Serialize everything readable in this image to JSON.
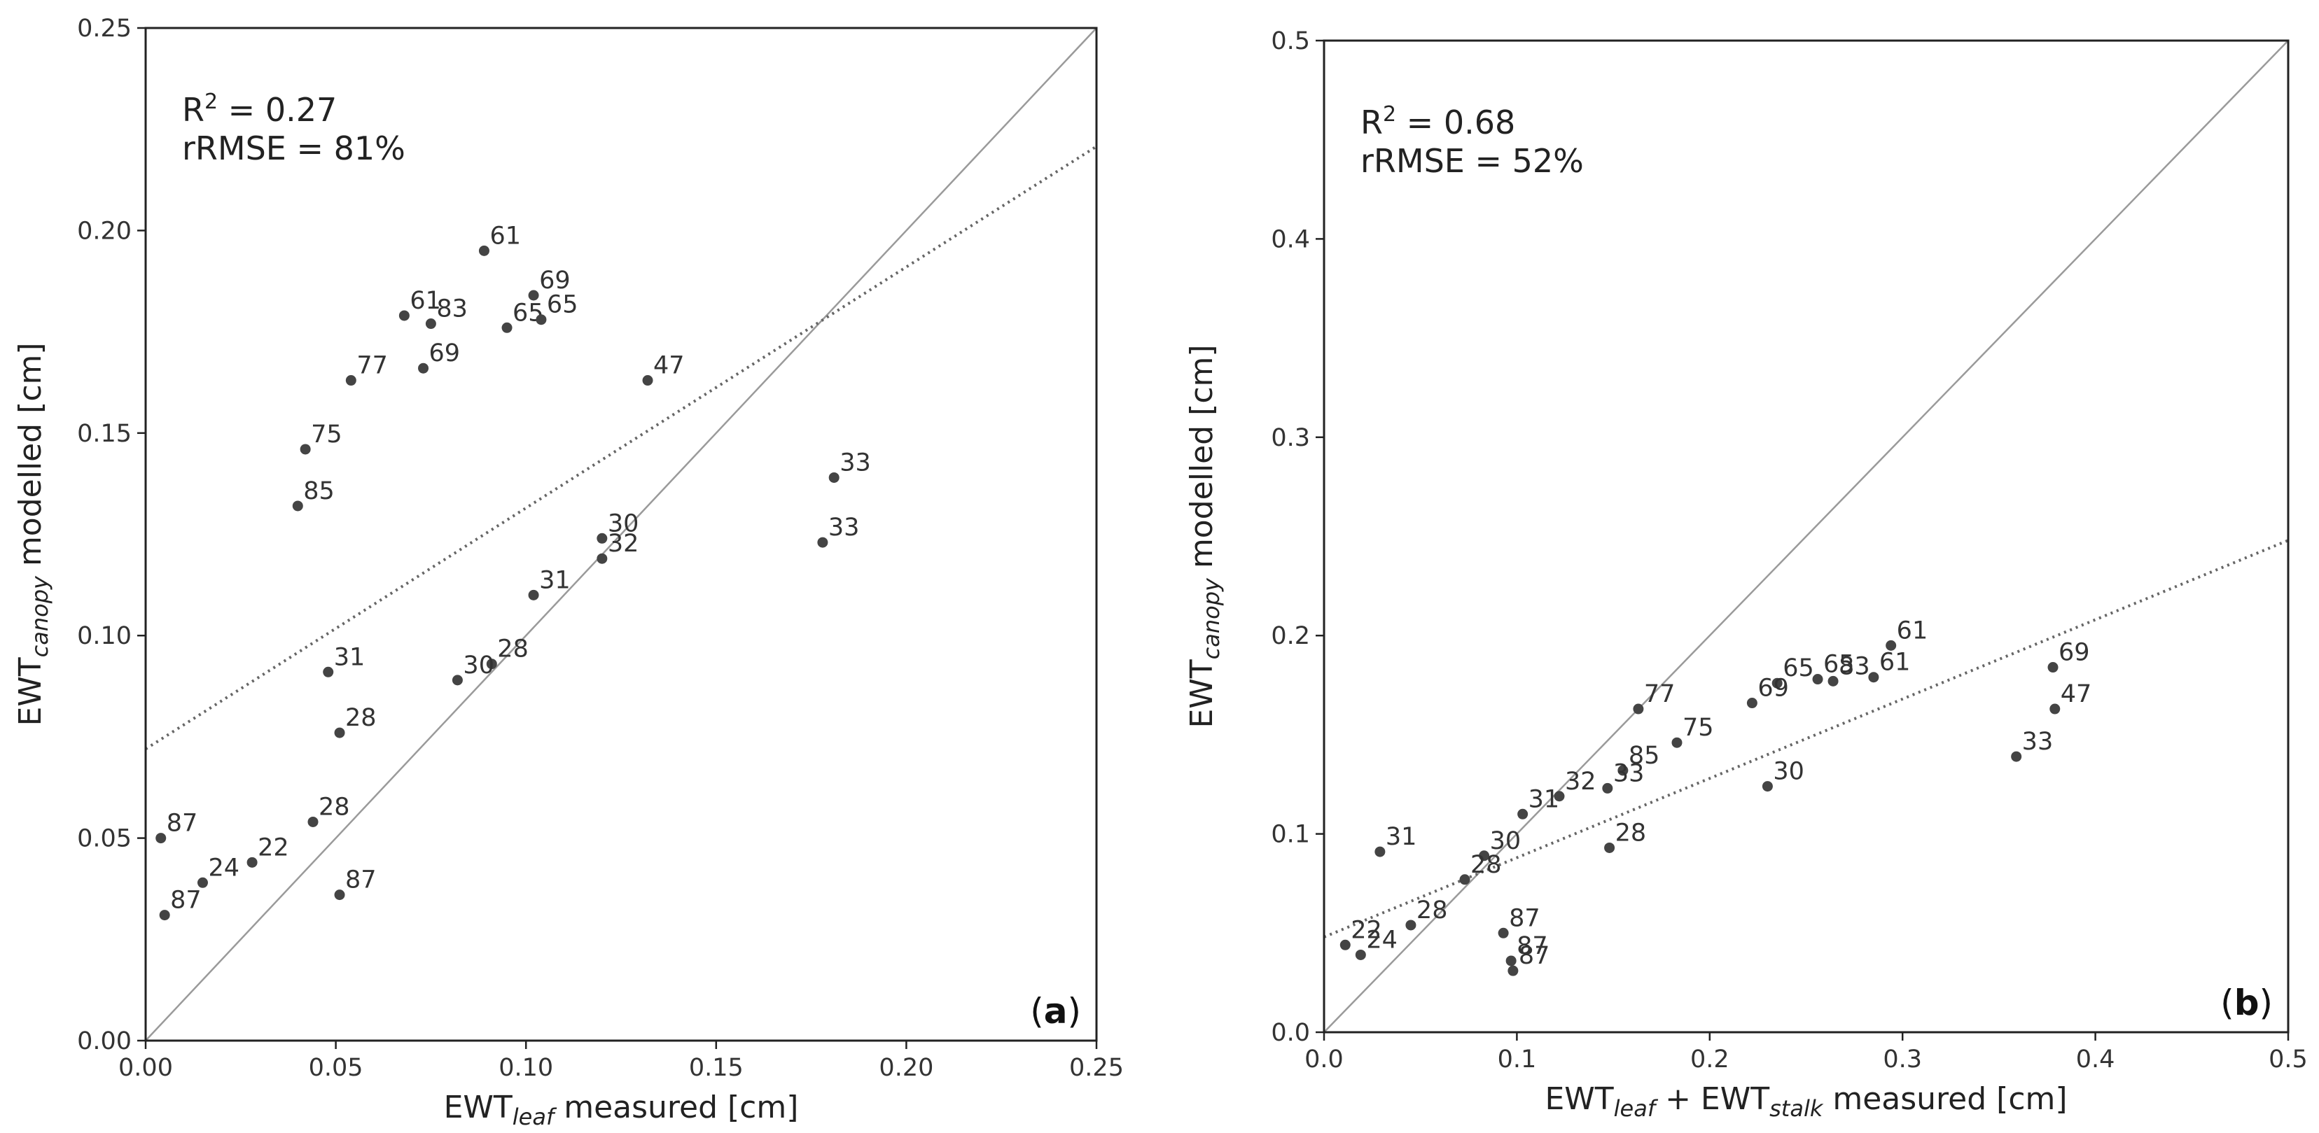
{
  "chart_data": [
    {
      "type": "scatter",
      "panel": "(a)",
      "title": "",
      "xlabel": "EWT_leaf measured [cm]",
      "ylabel": "EWT_canopy modelled [cm]",
      "xlabel_parts": {
        "base": "EWT",
        "sub": "leaf",
        "rest": " measured [cm]"
      },
      "ylabel_parts": {
        "base": "EWT",
        "sub": "canopy",
        "rest": " modelled [cm]"
      },
      "xlim": [
        0.0,
        0.25
      ],
      "ylim": [
        0.0,
        0.25
      ],
      "xticks": [
        "0.00",
        "0.05",
        "0.10",
        "0.15",
        "0.20",
        "0.25"
      ],
      "yticks": [
        "0.00",
        "0.05",
        "0.10",
        "0.15",
        "0.20",
        "0.25"
      ],
      "stats": {
        "r2_prefix": "R",
        "r2_sup": "2",
        "r2_value": " = 0.27",
        "rrmse": "rRMSE = 81%"
      },
      "fit_line": {
        "intercept": 0.072,
        "slope": 0.595
      },
      "one_to_one": true,
      "points": [
        {
          "x": 0.089,
          "y": 0.195,
          "label": "61"
        },
        {
          "x": 0.068,
          "y": 0.179,
          "label": "61"
        },
        {
          "x": 0.075,
          "y": 0.177,
          "label": "83"
        },
        {
          "x": 0.102,
          "y": 0.184,
          "label": "69"
        },
        {
          "x": 0.095,
          "y": 0.176,
          "label": "65"
        },
        {
          "x": 0.104,
          "y": 0.178,
          "label": "65"
        },
        {
          "x": 0.054,
          "y": 0.163,
          "label": "77"
        },
        {
          "x": 0.073,
          "y": 0.166,
          "label": "69"
        },
        {
          "x": 0.132,
          "y": 0.163,
          "label": "47"
        },
        {
          "x": 0.042,
          "y": 0.146,
          "label": "75"
        },
        {
          "x": 0.04,
          "y": 0.132,
          "label": "85"
        },
        {
          "x": 0.181,
          "y": 0.139,
          "label": "33"
        },
        {
          "x": 0.178,
          "y": 0.123,
          "label": "33"
        },
        {
          "x": 0.12,
          "y": 0.124,
          "label": "30"
        },
        {
          "x": 0.12,
          "y": 0.119,
          "label": "32"
        },
        {
          "x": 0.102,
          "y": 0.11,
          "label": "31"
        },
        {
          "x": 0.048,
          "y": 0.091,
          "label": "31"
        },
        {
          "x": 0.091,
          "y": 0.093,
          "label": "28"
        },
        {
          "x": 0.082,
          "y": 0.089,
          "label": "30"
        },
        {
          "x": 0.051,
          "y": 0.076,
          "label": "28"
        },
        {
          "x": 0.044,
          "y": 0.054,
          "label": "28"
        },
        {
          "x": 0.004,
          "y": 0.05,
          "label": "87"
        },
        {
          "x": 0.028,
          "y": 0.044,
          "label": "22"
        },
        {
          "x": 0.015,
          "y": 0.039,
          "label": "24"
        },
        {
          "x": 0.005,
          "y": 0.031,
          "label": "87"
        },
        {
          "x": 0.051,
          "y": 0.036,
          "label": "87"
        }
      ]
    },
    {
      "type": "scatter",
      "panel": "(b)",
      "title": "",
      "xlabel": "EWT_leaf + EWT_stalk measured [cm]",
      "ylabel": "EWT_canopy modelled [cm]",
      "xlabel_parts": {
        "base": "EWT",
        "sub": "leaf",
        "mid": " + EWT",
        "sub2": "stalk",
        "rest": " measured [cm]"
      },
      "ylabel_parts": {
        "base": "EWT",
        "sub": "canopy",
        "rest": " modelled [cm]"
      },
      "xlim": [
        0.0,
        0.5
      ],
      "ylim": [
        0.0,
        0.5
      ],
      "xticks": [
        "0.0",
        "0.1",
        "0.2",
        "0.3",
        "0.4",
        "0.5"
      ],
      "yticks": [
        "0.0",
        "0.1",
        "0.2",
        "0.3",
        "0.4",
        "0.5"
      ],
      "stats": {
        "r2_prefix": "R",
        "r2_sup": "2",
        "r2_value": " = 0.68",
        "rrmse": "rRMSE = 52%"
      },
      "fit_line": {
        "intercept": 0.048,
        "slope": 0.4
      },
      "one_to_one": true,
      "points": [
        {
          "x": 0.294,
          "y": 0.195,
          "label": "61"
        },
        {
          "x": 0.285,
          "y": 0.179,
          "label": "61"
        },
        {
          "x": 0.264,
          "y": 0.177,
          "label": "83"
        },
        {
          "x": 0.235,
          "y": 0.176,
          "label": "65"
        },
        {
          "x": 0.256,
          "y": 0.178,
          "label": "65"
        },
        {
          "x": 0.222,
          "y": 0.166,
          "label": "69"
        },
        {
          "x": 0.378,
          "y": 0.184,
          "label": "69"
        },
        {
          "x": 0.379,
          "y": 0.163,
          "label": "47"
        },
        {
          "x": 0.163,
          "y": 0.163,
          "label": "77"
        },
        {
          "x": 0.183,
          "y": 0.146,
          "label": "75"
        },
        {
          "x": 0.155,
          "y": 0.132,
          "label": "85"
        },
        {
          "x": 0.359,
          "y": 0.139,
          "label": "33"
        },
        {
          "x": 0.23,
          "y": 0.124,
          "label": "30"
        },
        {
          "x": 0.147,
          "y": 0.123,
          "label": "33"
        },
        {
          "x": 0.122,
          "y": 0.119,
          "label": "32"
        },
        {
          "x": 0.103,
          "y": 0.11,
          "label": "31"
        },
        {
          "x": 0.148,
          "y": 0.093,
          "label": "28"
        },
        {
          "x": 0.029,
          "y": 0.091,
          "label": "31"
        },
        {
          "x": 0.083,
          "y": 0.089,
          "label": "30"
        },
        {
          "x": 0.073,
          "y": 0.077,
          "label": "28"
        },
        {
          "x": 0.045,
          "y": 0.054,
          "label": "28"
        },
        {
          "x": 0.011,
          "y": 0.044,
          "label": "22"
        },
        {
          "x": 0.019,
          "y": 0.039,
          "label": "24"
        },
        {
          "x": 0.093,
          "y": 0.05,
          "label": "87"
        },
        {
          "x": 0.097,
          "y": 0.036,
          "label": "87"
        },
        {
          "x": 0.098,
          "y": 0.031,
          "label": "87"
        }
      ]
    }
  ]
}
